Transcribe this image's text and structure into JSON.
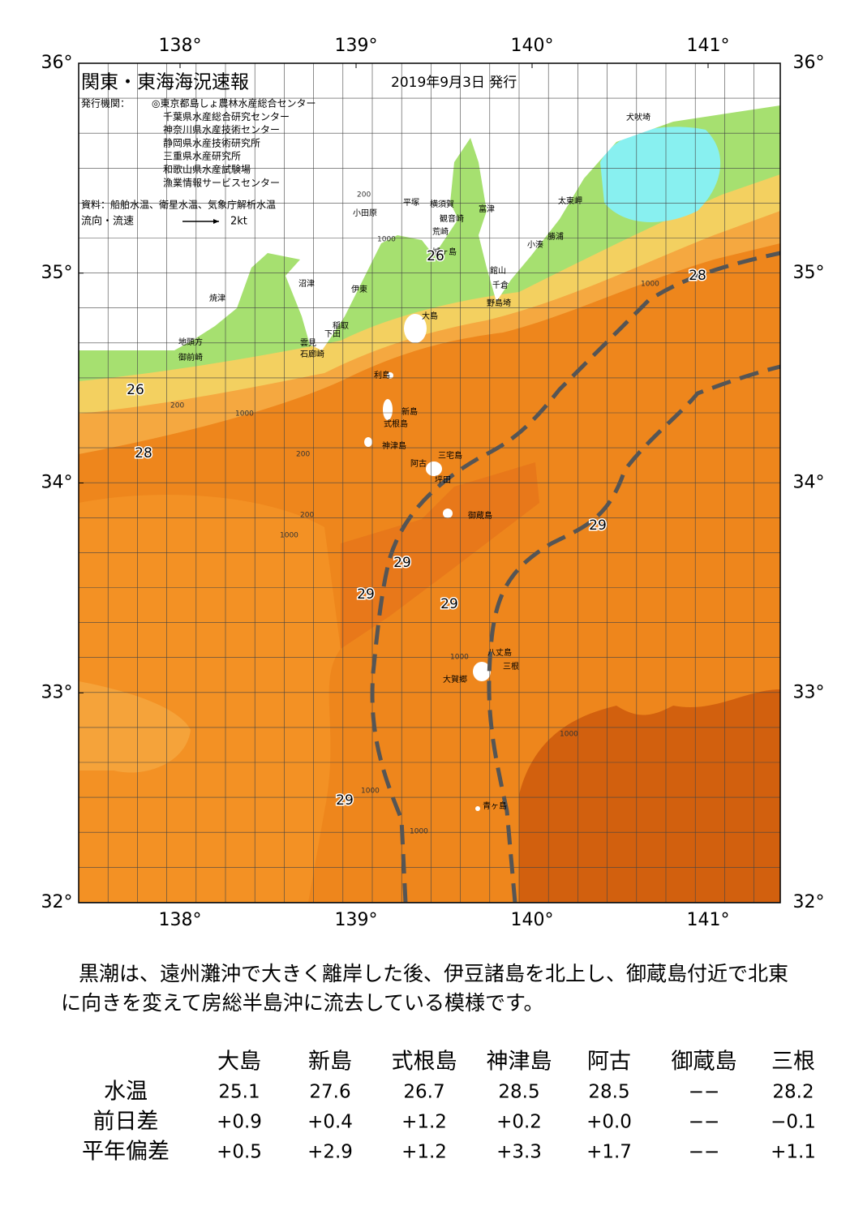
{
  "map": {
    "title": "関東・東海海況速報",
    "date": "2019年9月3日 発行",
    "issuer_label": "発行機関：",
    "issuers": [
      "◎東京都島しょ農林水産総合センター",
      "千葉県水産総合研究センター",
      "神奈川県水産技術センター",
      "静岡県水産技術研究所",
      "三重県水産研究所",
      "和歌山県水産試験場",
      "漁業情報サービスセンター"
    ],
    "source": "資料：船舶水温、衛星水温、気象庁解析水温",
    "flow_label": "流向・流速",
    "flow_scale": "2kt",
    "lon_ticks": [
      {
        "value": 138,
        "label": "138°"
      },
      {
        "value": 139,
        "label": "139°"
      },
      {
        "value": 140,
        "label": "140°"
      },
      {
        "value": 141,
        "label": "141°"
      }
    ],
    "lat_ticks": [
      {
        "value": 36,
        "label": "36°"
      },
      {
        "value": 35,
        "label": "35°"
      },
      {
        "value": 34,
        "label": "34°"
      },
      {
        "value": 33,
        "label": "33°"
      },
      {
        "value": 32,
        "label": "32°"
      }
    ],
    "places": [
      "犬吠埼",
      "太東岬",
      "勝浦",
      "小湊",
      "富津",
      "館山",
      "千倉",
      "野島埼",
      "横須賀",
      "観音崎",
      "平塚",
      "小田原",
      "荒崎",
      "城ヶ島",
      "沼津",
      "伊東",
      "稲取",
      "下田",
      "雲見",
      "石廊崎",
      "焼津",
      "地頭方",
      "御前崎",
      "大島",
      "利島",
      "新島",
      "式根島",
      "神津島",
      "三宅島",
      "阿古",
      "坪田",
      "御蔵島",
      "八丈島",
      "三根",
      "大賀郷",
      "青ヶ島"
    ],
    "isotherm_labels": [
      26,
      28,
      28,
      26,
      29,
      29,
      29,
      29,
      29
    ],
    "depth_labels": [
      "200",
      "1000",
      "200",
      "1000",
      "200",
      "1000",
      "1000",
      "200",
      "1000",
      "1000",
      "1000",
      "1000"
    ]
  },
  "description": [
    "黒潮は、遠州灘沖で大きく離岸した後、伊豆諸島を北上し、御蔵島付近で北東",
    "に向きを変えて房総半島沖に流去している模様です。"
  ],
  "table": {
    "columns": [
      "大島",
      "新島",
      "式根島",
      "神津島",
      "阿古",
      "御蔵島",
      "三根"
    ],
    "rows": [
      {
        "label": "水温",
        "values": [
          "25.1",
          "27.6",
          "26.7",
          "28.5",
          "28.5",
          "−−",
          "28.2"
        ]
      },
      {
        "label": "前日差",
        "values": [
          "+0.9",
          "+0.4",
          "+1.2",
          "+0.2",
          "+0.0",
          "−−",
          "−0.1"
        ]
      },
      {
        "label": "平年偏差",
        "values": [
          "+0.5",
          "+2.9",
          "+1.2",
          "+3.3",
          "+1.7",
          "−−",
          "+1.1"
        ]
      }
    ]
  }
}
